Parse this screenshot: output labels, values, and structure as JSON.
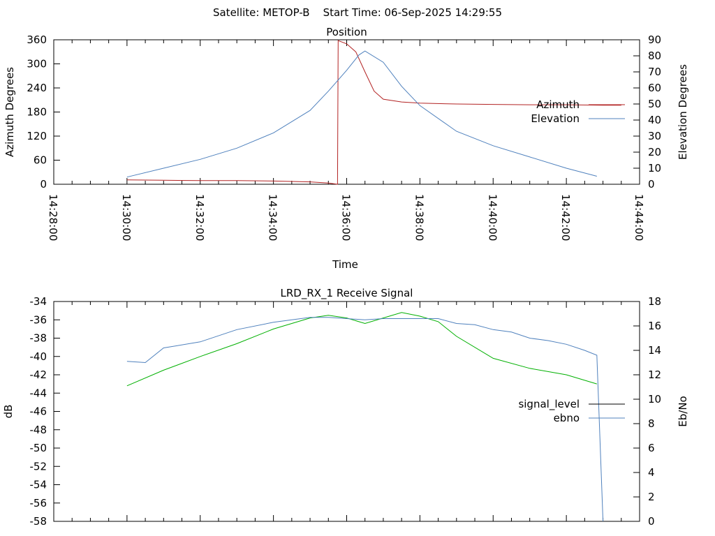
{
  "header": {
    "title": "Satellite: METOP-B    Start Time: 06-Sep-2025 14:29:55"
  },
  "chart_data": [
    {
      "type": "line",
      "title": "Position",
      "xlabel": "Time",
      "ylabel": "Azimuth Degrees",
      "y2label": "Elevation Degrees",
      "x_ticks": [
        "14:28:00",
        "14:30:00",
        "14:32:00",
        "14:34:00",
        "14:36:00",
        "14:38:00",
        "14:40:00",
        "14:42:00",
        "14:44:00"
      ],
      "xlim": [
        "14:28:00",
        "14:44:00"
      ],
      "ylim": [
        0,
        360
      ],
      "y_ticks": [
        0,
        60,
        120,
        180,
        240,
        300,
        360
      ],
      "y2lim": [
        0,
        90
      ],
      "y2_ticks": [
        0,
        10,
        20,
        30,
        40,
        50,
        60,
        70,
        80,
        90
      ],
      "legend": "right",
      "series": [
        {
          "name": "Azimuth",
          "axis": "y",
          "color": "#b22222",
          "x": [
            "14:30:00",
            "14:31:00",
            "14:32:00",
            "14:33:00",
            "14:34:00",
            "14:35:00",
            "14:35:30",
            "14:35:45",
            "14:35:46",
            "14:36:00",
            "14:36:15",
            "14:36:30",
            "14:36:45",
            "14:37:00",
            "14:37:30",
            "14:38:00",
            "14:39:00",
            "14:40:00",
            "14:41:00",
            "14:42:00",
            "14:43:00",
            "14:43:30"
          ],
          "values": [
            11,
            10,
            9,
            9,
            8,
            6,
            3,
            0,
            358,
            350,
            330,
            280,
            232,
            212,
            205,
            202,
            200,
            199,
            198,
            198,
            197,
            197
          ]
        },
        {
          "name": "Elevation",
          "axis": "y2",
          "color": "#4f81bd",
          "x": [
            "14:30:00",
            "14:31:00",
            "14:32:00",
            "14:33:00",
            "14:34:00",
            "14:35:00",
            "14:35:30",
            "14:36:00",
            "14:36:20",
            "14:36:30",
            "14:37:00",
            "14:37:30",
            "14:38:00",
            "14:39:00",
            "14:40:00",
            "14:41:00",
            "14:42:00",
            "14:42:50"
          ],
          "values": [
            4.5,
            10,
            15.5,
            22.5,
            32,
            46,
            58,
            71,
            80.5,
            83,
            76,
            61,
            49,
            33,
            24,
            17,
            10,
            5
          ]
        }
      ]
    },
    {
      "type": "line",
      "title": "LRD_RX_1 Receive Signal",
      "xlabel": "",
      "ylabel": "dB",
      "y2label": "Eb/No",
      "x_ticks": [],
      "xlim": [
        "14:28:00",
        "14:44:00"
      ],
      "ylim": [
        -58,
        -34
      ],
      "y_ticks": [
        -58,
        -56,
        -54,
        -52,
        -50,
        -48,
        -46,
        -44,
        -42,
        -40,
        -38,
        -36,
        -34
      ],
      "y2lim": [
        0,
        18
      ],
      "y2_ticks": [
        0,
        2,
        4,
        6,
        8,
        10,
        12,
        14,
        16,
        18
      ],
      "legend": "right",
      "series": [
        {
          "name": "signal_level",
          "axis": "y",
          "color": "#00b000",
          "x": [
            "14:30:00",
            "14:31:00",
            "14:32:00",
            "14:33:00",
            "14:34:00",
            "14:35:00",
            "14:35:30",
            "14:36:00",
            "14:36:30",
            "14:37:00",
            "14:37:30",
            "14:38:00",
            "14:38:30",
            "14:39:00",
            "14:40:00",
            "14:41:00",
            "14:42:00",
            "14:42:50"
          ],
          "values": [
            -43.2,
            -41.5,
            -40,
            -38.6,
            -37,
            -35.8,
            -35.5,
            -35.8,
            -36.4,
            -35.8,
            -35.2,
            -35.6,
            -36.2,
            -37.8,
            -40.2,
            -41.3,
            -42,
            -43
          ]
        },
        {
          "name": "ebno",
          "axis": "y2",
          "color": "#4f81bd",
          "x": [
            "14:30:00",
            "14:30:30",
            "14:31:00",
            "14:32:00",
            "14:33:00",
            "14:34:00",
            "14:35:00",
            "14:35:30",
            "14:36:00",
            "14:36:30",
            "14:37:00",
            "14:37:30",
            "14:38:00",
            "14:38:30",
            "14:39:00",
            "14:39:30",
            "14:40:00",
            "14:40:30",
            "14:41:00",
            "14:41:30",
            "14:42:00",
            "14:42:30",
            "14:42:50",
            "14:43:00"
          ],
          "values": [
            13.1,
            13.0,
            14.2,
            14.7,
            15.7,
            16.3,
            16.7,
            16.7,
            16.6,
            16.5,
            16.6,
            16.6,
            16.6,
            16.6,
            16.2,
            16.1,
            15.7,
            15.5,
            15.0,
            14.8,
            14.5,
            14.0,
            13.6,
            0
          ]
        }
      ]
    }
  ]
}
